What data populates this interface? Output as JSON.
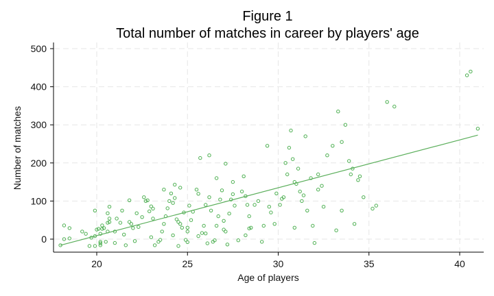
{
  "chart_data": {
    "type": "scatter",
    "title": "Figure 1",
    "subtitle": "Total number of matches in career by players' age",
    "xlabel": "Age of players",
    "ylabel": "Number of matches",
    "xlim": [
      17.6,
      41.3
    ],
    "ylim": [
      -33,
      512
    ],
    "xticks": [
      20,
      25,
      30,
      35,
      40
    ],
    "yticks": [
      0,
      100,
      200,
      300,
      400,
      500
    ],
    "grid": true,
    "legend": null,
    "colors": {
      "marker": "#4caf50",
      "fit_line": "#5aae5a",
      "grid": "#e6e6e6",
      "axis": "#000000"
    },
    "fit_line": {
      "x": [
        18.0,
        41.0
      ],
      "y": [
        -16,
        273
      ]
    },
    "series": [
      {
        "name": "Number of matches",
        "marker": "hollow-circle",
        "points": [
          [
            18.0,
            -16
          ],
          [
            18.2,
            36
          ],
          [
            18.5,
            29
          ],
          [
            18.2,
            0
          ],
          [
            18.5,
            2
          ],
          [
            19.2,
            20
          ],
          [
            19.4,
            14
          ],
          [
            19.7,
            4
          ],
          [
            19.9,
            8
          ],
          [
            19.9,
            75
          ],
          [
            20.0,
            25
          ],
          [
            20.1,
            27
          ],
          [
            20.2,
            -7
          ],
          [
            20.2,
            -11
          ],
          [
            20.5,
            -7
          ],
          [
            19.6,
            -18
          ],
          [
            19.9,
            -18
          ],
          [
            20.2,
            -16
          ],
          [
            20.2,
            14
          ],
          [
            20.3,
            27
          ],
          [
            20.3,
            36
          ],
          [
            20.4,
            29
          ],
          [
            20.6,
            43
          ],
          [
            20.6,
            20
          ],
          [
            20.7,
            54
          ],
          [
            20.7,
            45
          ],
          [
            20.6,
            68
          ],
          [
            20.7,
            85
          ],
          [
            21.1,
            54
          ],
          [
            21.0,
            20
          ],
          [
            21.3,
            43
          ],
          [
            21.4,
            75
          ],
          [
            21.5,
            12
          ],
          [
            21.6,
            -16
          ],
          [
            21.8,
            45
          ],
          [
            21.9,
            40
          ],
          [
            22.0,
            29
          ],
          [
            22.2,
            68
          ],
          [
            22.3,
            32
          ],
          [
            22.5,
            58
          ],
          [
            22.6,
            110
          ],
          [
            22.7,
            100
          ],
          [
            22.8,
            102
          ],
          [
            23.0,
            86
          ],
          [
            23.1,
            80
          ],
          [
            23.1,
            54
          ],
          [
            23.2,
            -16
          ],
          [
            23.4,
            -7
          ],
          [
            23.5,
            -2
          ],
          [
            23.6,
            20
          ],
          [
            23.7,
            40
          ],
          [
            23.8,
            60
          ],
          [
            23.9,
            81
          ],
          [
            24.0,
            100
          ],
          [
            24.1,
            120
          ],
          [
            24.2,
            95
          ],
          [
            24.3,
            108
          ],
          [
            24.4,
            52
          ],
          [
            24.5,
            45
          ],
          [
            24.5,
            -18
          ],
          [
            24.6,
            40
          ],
          [
            24.7,
            30
          ],
          [
            24.8,
            70
          ],
          [
            24.9,
            -2
          ],
          [
            25.0,
            20
          ],
          [
            25.1,
            88
          ],
          [
            25.2,
            50
          ],
          [
            25.3,
            72
          ],
          [
            25.5,
            130
          ],
          [
            25.6,
            119
          ],
          [
            25.6,
            8
          ],
          [
            25.8,
            16
          ],
          [
            25.9,
            35
          ],
          [
            26.0,
            90
          ],
          [
            26.1,
            -11
          ],
          [
            26.2,
            110
          ],
          [
            26.3,
            75
          ],
          [
            26.4,
            -7
          ],
          [
            26.5,
            -3
          ],
          [
            26.6,
            35
          ],
          [
            26.7,
            60
          ],
          [
            26.8,
            104
          ],
          [
            27.0,
            48
          ],
          [
            27.1,
            20
          ],
          [
            27.2,
            -14
          ],
          [
            27.3,
            67
          ],
          [
            27.4,
            104
          ],
          [
            27.5,
            118
          ],
          [
            27.6,
            88
          ],
          [
            27.8,
            -3
          ],
          [
            28.0,
            125
          ],
          [
            28.1,
            165
          ],
          [
            28.2,
            113
          ],
          [
            28.3,
            90
          ],
          [
            28.4,
            28
          ],
          [
            28.5,
            30
          ],
          [
            28.7,
            90
          ],
          [
            28.9,
            100
          ],
          [
            29.1,
            -7
          ],
          [
            29.2,
            35
          ],
          [
            29.4,
            245
          ],
          [
            29.5,
            85
          ],
          [
            29.6,
            70
          ],
          [
            29.9,
            120
          ],
          [
            30.1,
            90
          ],
          [
            30.2,
            106
          ],
          [
            30.3,
            110
          ],
          [
            30.4,
            200
          ],
          [
            30.5,
            170
          ],
          [
            30.6,
            240
          ],
          [
            30.7,
            285
          ],
          [
            30.8,
            210
          ],
          [
            30.9,
            150
          ],
          [
            31.0,
            145
          ],
          [
            31.1,
            185
          ],
          [
            31.2,
            125
          ],
          [
            31.3,
            100
          ],
          [
            31.4,
            115
          ],
          [
            31.6,
            75
          ],
          [
            31.8,
            160
          ],
          [
            32.0,
            -10
          ],
          [
            32.2,
            130
          ],
          [
            32.4,
            140
          ],
          [
            32.5,
            85
          ],
          [
            32.7,
            220
          ],
          [
            33.0,
            245
          ],
          [
            33.3,
            335
          ],
          [
            33.5,
            255
          ],
          [
            33.7,
            300
          ],
          [
            33.9,
            205
          ],
          [
            34.0,
            170
          ],
          [
            34.1,
            185
          ],
          [
            34.2,
            40
          ],
          [
            34.4,
            155
          ],
          [
            34.5,
            165
          ],
          [
            34.7,
            110
          ],
          [
            35.2,
            80
          ],
          [
            35.4,
            88
          ],
          [
            36.0,
            360
          ],
          [
            36.4,
            348
          ],
          [
            40.4,
            430
          ],
          [
            40.6,
            440
          ],
          [
            41.0,
            290
          ],
          [
            21.0,
            -10
          ],
          [
            22.1,
            -5
          ],
          [
            23.0,
            5
          ],
          [
            24.2,
            10
          ],
          [
            25.0,
            -8
          ],
          [
            26.0,
            15
          ],
          [
            27.0,
            25
          ],
          [
            28.2,
            10
          ],
          [
            21.8,
            102
          ],
          [
            22.9,
            73
          ],
          [
            24.6,
            135
          ],
          [
            25.7,
            213
          ],
          [
            26.2,
            220
          ],
          [
            26.6,
            160
          ],
          [
            27.1,
            198
          ],
          [
            27.5,
            150
          ],
          [
            23.7,
            130
          ],
          [
            24.3,
            143
          ],
          [
            25.0,
            30
          ],
          [
            26.9,
            128
          ],
          [
            28.4,
            60
          ],
          [
            29.8,
            40
          ],
          [
            30.9,
            30
          ],
          [
            31.9,
            35
          ],
          [
            33.2,
            23
          ],
          [
            31.5,
            270
          ],
          [
            32.2,
            170
          ],
          [
            33.5,
            75
          ]
        ]
      }
    ]
  }
}
